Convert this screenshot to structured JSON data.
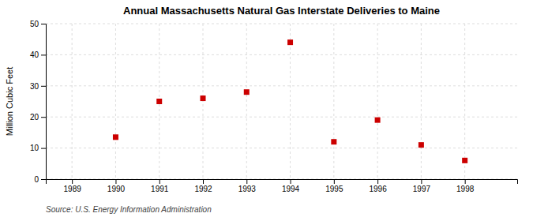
{
  "chart_data": {
    "type": "scatter",
    "title": "Annual Massachusetts Natural Gas Interstate Deliveries to Maine",
    "ylabel": "Million Cubic Feet",
    "annotations": [
      "Source: U.S. Energy Information Administration"
    ],
    "x": [
      1989,
      1990,
      1991,
      1992,
      1993,
      1994,
      1995,
      1996,
      1997,
      1998
    ],
    "values": [
      null,
      13.5,
      25.0,
      26.0,
      28.0,
      44.0,
      12.0,
      19.0,
      11.0,
      6.0
    ],
    "xlim": [
      1988.4,
      1999.2
    ],
    "ylim": [
      0,
      50
    ],
    "xticks": [
      1989,
      1990,
      1991,
      1992,
      1993,
      1994,
      1995,
      1996,
      1997,
      1998
    ],
    "yticks": [
      0,
      10,
      20,
      30,
      40,
      50
    ],
    "color": "#cc0000",
    "marker": "square",
    "grid": true
  }
}
